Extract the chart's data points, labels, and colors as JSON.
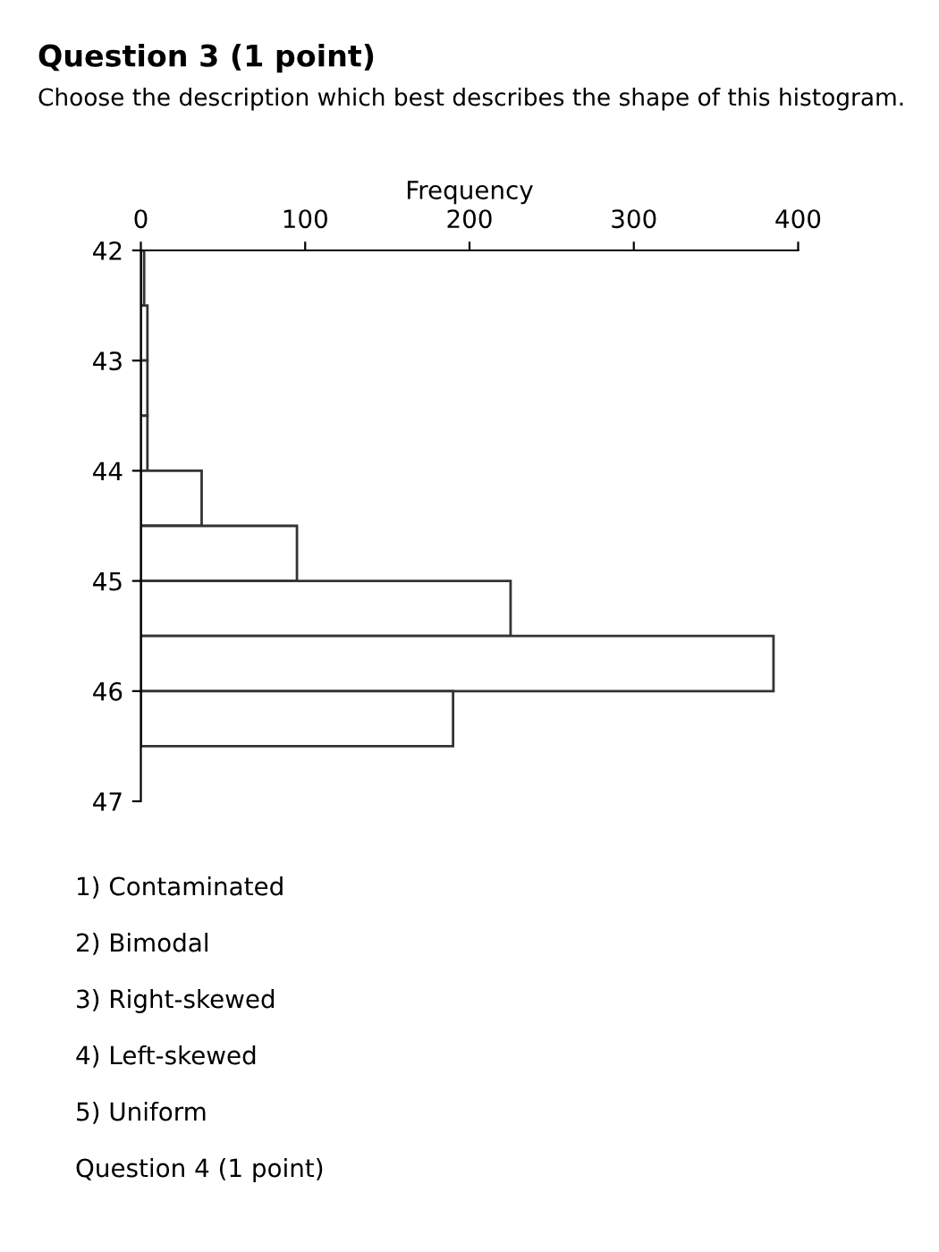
{
  "chart_data": {
    "type": "histogram",
    "orientation": "horizontal",
    "title": "Question 3 (1 point)",
    "subtitle": "Choose the description which best describes the shape of this histogram.",
    "xlabel": "Frequency",
    "bins": [
      42,
      42.5,
      43,
      43.5,
      44,
      44.5,
      45,
      45.5,
      46,
      46.5,
      47
    ],
    "values": [
      2,
      4,
      4,
      4,
      37,
      95,
      225,
      385,
      190,
      0
    ],
    "color": "#ffffff",
    "xlim": [
      0,
      400
    ],
    "xticks": [
      0,
      100,
      200,
      300,
      400
    ],
    "ylim": [
      47,
      42
    ],
    "yticks": [
      42,
      43,
      44,
      45,
      46,
      47
    ],
    "grid": false,
    "annotations": [
      "1) Contaminated",
      "2) Bimodal",
      "3) Right-skewed",
      "4) Left-skewed",
      "5) Uniform",
      "Question 4 (1 point)"
    ]
  }
}
